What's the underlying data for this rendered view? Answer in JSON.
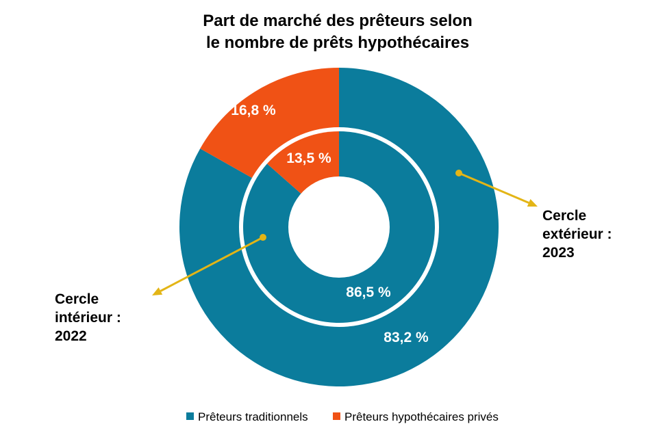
{
  "chart_data": {
    "type": "pie",
    "title_lines": [
      "Part de marché des prêteurs selon",
      "le nombre de prêts hypothécaires"
    ],
    "categories": [
      "Prêteurs traditionnels",
      "Prêteurs hypothécaires privés"
    ],
    "colors": [
      "#0b7c9c",
      "#f05215"
    ],
    "series": [
      {
        "ring": "outer",
        "values": [
          83.2,
          16.8
        ],
        "value_labels": [
          "83,2 %",
          "16,8 %"
        ]
      },
      {
        "ring": "inner",
        "values": [
          86.5,
          13.5
        ],
        "value_labels": [
          "86,5 %",
          "13,5 %"
        ]
      }
    ],
    "annotations": {
      "outer": [
        "Cercle",
        "extérieur :",
        "2023"
      ],
      "inner": [
        "Cercle",
        "intérieur :",
        "2022"
      ]
    },
    "annotation_color": "#e3b516",
    "legend_position": "bottom"
  }
}
